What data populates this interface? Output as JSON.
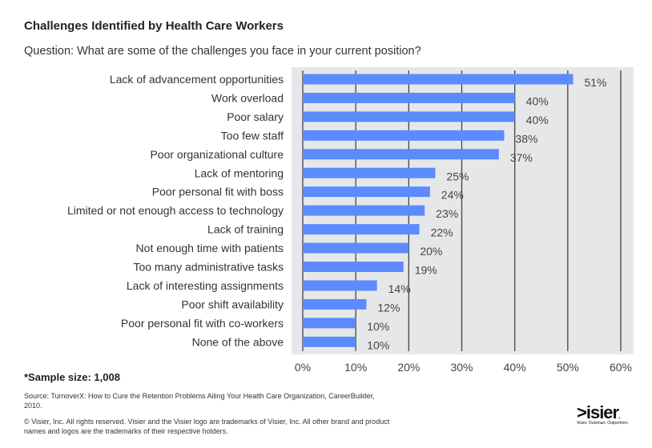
{
  "title": "Challenges Identified by Health Care Workers",
  "subtitle": "Question: What are some of the challenges you face in your current position?",
  "sample": "*Sample size: 1,008",
  "source": "Source: TurnoverX: How to Cure the Retention Problems Ailing Your Health Care Organization, CareerBuilder, 2010.",
  "copyright": "© Visier, Inc. All rights reserved. Visier and the Visier logo are trademarks of Visier, Inc. All other brand and product names and logos are the trademarks of their respective holders.",
  "logo": {
    "text": ">isier.",
    "tagline": "Visier. Outsmart. Outperform."
  },
  "colors": {
    "bar": "#5b8bff",
    "plot_bg": "#e6e7e8",
    "grid": "#444444"
  },
  "chart_data": {
    "type": "bar",
    "orientation": "horizontal",
    "categories": [
      "Lack of advancement opportunities",
      "Work overload",
      "Poor salary",
      "Too few staff",
      "Poor organizational culture",
      "Lack of mentoring",
      "Poor personal fit with boss",
      "Limited or not enough access to technology",
      "Lack of training",
      "Not enough time with patients",
      "Too many administrative tasks",
      "Lack of interesting assignments",
      "Poor shift availability",
      "Poor personal fit with co-workers",
      "None of the above"
    ],
    "values": [
      51,
      40,
      40,
      38,
      37,
      25,
      24,
      23,
      22,
      20,
      19,
      14,
      12,
      10,
      10
    ],
    "data_labels": [
      "51%",
      "40%",
      "40%",
      "38%",
      "37%",
      "25%",
      "24%",
      "23%",
      "22%",
      "20%",
      "19%",
      "14%",
      "12%",
      "10%",
      "10%"
    ],
    "xlim": [
      0,
      60
    ],
    "xticks": [
      "0%",
      "10%",
      "20%",
      "30%",
      "40%",
      "50%",
      "60%"
    ],
    "grid": true
  }
}
